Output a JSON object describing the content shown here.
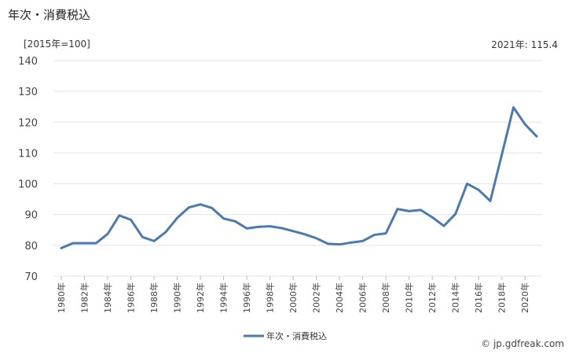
{
  "title": "年次・消費税込",
  "unit_label": "[2015年=100]",
  "latest_label": "2021年: 115.4",
  "credit": "© jp.gdfreak.com",
  "chart_data": {
    "type": "line",
    "title": "年次・消費税込",
    "xlabel": "",
    "ylabel": "[2015年=100]",
    "ylim": [
      70,
      140
    ],
    "yticks": [
      70,
      80,
      90,
      100,
      110,
      120,
      130,
      140
    ],
    "grid": true,
    "legend": "bottom-center",
    "x": [
      1980,
      1981,
      1982,
      1983,
      1984,
      1985,
      1986,
      1987,
      1988,
      1989,
      1990,
      1991,
      1992,
      1993,
      1994,
      1995,
      1996,
      1997,
      1998,
      1999,
      2000,
      2001,
      2002,
      2003,
      2004,
      2005,
      2006,
      2007,
      2008,
      2009,
      2010,
      2011,
      2012,
      2013,
      2014,
      2015,
      2016,
      2017,
      2018,
      2019,
      2020,
      2021
    ],
    "x_tick_labels": [
      "1980年",
      "1982年",
      "1984年",
      "1986年",
      "1988年",
      "1990年",
      "1992年",
      "1994年",
      "1996年",
      "1998年",
      "2000年",
      "2002年",
      "2004年",
      "2006年",
      "2008年",
      "2010年",
      "2012年",
      "2014年",
      "2016年",
      "2018年",
      "2020年"
    ],
    "series": [
      {
        "name": "年次・消費税込",
        "color": "#4a7ab5",
        "values": [
          79.1,
          80.7,
          80.7,
          80.7,
          83.7,
          89.7,
          88.3,
          82.7,
          81.4,
          84.3,
          88.9,
          92.3,
          93.3,
          92.1,
          88.7,
          87.8,
          85.5,
          86.0,
          86.2,
          85.6,
          84.6,
          83.6,
          82.3,
          80.5,
          80.3,
          80.9,
          81.4,
          83.4,
          83.9,
          91.8,
          91.1,
          91.5,
          89.1,
          86.3,
          90.2,
          100.0,
          98.0,
          94.4,
          109.5,
          124.8,
          119.3,
          115.4
        ]
      }
    ]
  }
}
